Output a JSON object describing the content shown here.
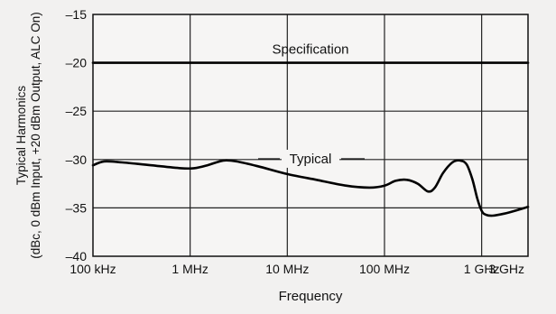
{
  "chart_data": {
    "type": "line",
    "xlabel": "Frequency",
    "ylabel_line1": "Typical Harmonics",
    "ylabel_line2": "(dBc, 0 dBm Input, +20 dBm Output, ALC On)",
    "x_scale": "log",
    "xlim": [
      100000,
      3000000000
    ],
    "ylim": [
      -40,
      -15
    ],
    "grid": true,
    "x_ticks": [
      {
        "value": 100000,
        "label": "100 kHz"
      },
      {
        "value": 1000000,
        "label": "1 MHz"
      },
      {
        "value": 10000000,
        "label": "10 MHz"
      },
      {
        "value": 100000000,
        "label": "100 MHz"
      },
      {
        "value": 1000000000,
        "label": "1 GHz"
      },
      {
        "value": 3000000000,
        "label": "3 GHz"
      }
    ],
    "y_ticks": [
      {
        "value": -15,
        "label": "–15"
      },
      {
        "value": -20,
        "label": "–20"
      },
      {
        "value": -25,
        "label": "–25"
      },
      {
        "value": -30,
        "label": "–30"
      },
      {
        "value": -35,
        "label": "–35"
      },
      {
        "value": -40,
        "label": "–40"
      }
    ],
    "series": [
      {
        "name": "Specification",
        "color": "#000000",
        "x": [
          100000,
          3000000000
        ],
        "y": [
          -20,
          -20
        ]
      },
      {
        "name": "Typical",
        "color": "#000000",
        "x": [
          100000,
          130000,
          200000,
          400000,
          800000,
          1100000,
          1500000,
          2200000,
          3000000,
          5000000,
          10000000,
          20000000,
          40000000,
          70000000,
          100000000,
          130000000,
          170000000,
          220000000,
          280000000,
          330000000,
          400000000,
          500000000,
          600000000,
          700000000,
          800000000,
          900000000,
          1000000000,
          1100000000,
          1300000000,
          1700000000,
          2200000000,
          3000000000
        ],
        "y": [
          -30.6,
          -30.2,
          -30.3,
          -30.6,
          -30.9,
          -30.9,
          -30.6,
          -30.1,
          -30.2,
          -30.7,
          -31.5,
          -32.1,
          -32.7,
          -32.9,
          -32.7,
          -32.2,
          -32.1,
          -32.5,
          -33.3,
          -32.9,
          -31.4,
          -30.3,
          -30.1,
          -30.5,
          -32.0,
          -34.0,
          -35.3,
          -35.7,
          -35.8,
          -35.6,
          -35.3,
          -34.9
        ]
      }
    ],
    "annotations": [
      {
        "text": "Specification",
        "series": "Specification"
      },
      {
        "text": "Typical",
        "series": "Typical"
      }
    ]
  }
}
